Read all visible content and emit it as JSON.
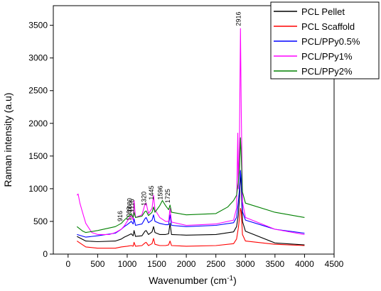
{
  "chart_data": {
    "type": "line",
    "title": "",
    "xlabel": "Wavenumber (cm",
    "xlabel_sup": "-1",
    "xlabel_close": ")",
    "ylabel": "Raman intensity (a.u)",
    "xlim": [
      -250,
      4500
    ],
    "ylim": [
      0,
      3800
    ],
    "xticks": [
      0,
      500,
      1000,
      1500,
      2000,
      2500,
      3000,
      3500,
      4000,
      4500
    ],
    "yticks": [
      0,
      500,
      1000,
      1500,
      2000,
      2500,
      3000,
      3500
    ],
    "legend_position": "top-right",
    "peak_labels": [
      {
        "text": "916",
        "x": 916,
        "y": 500
      },
      {
        "text": "1069",
        "x": 1069,
        "y": 510
      },
      {
        "text": "1080",
        "x": 1080,
        "y": 640
      },
      {
        "text": "1116",
        "x": 1116,
        "y": 640
      },
      {
        "text": "1320",
        "x": 1320,
        "y": 740
      },
      {
        "text": "1445",
        "x": 1445,
        "y": 830
      },
      {
        "text": "1596",
        "x": 1596,
        "y": 830
      },
      {
        "text": "1725",
        "x": 1725,
        "y": 780
      },
      {
        "text": "2916",
        "x": 2916,
        "y": 3490
      }
    ],
    "series": [
      {
        "name": "PCL Pellet",
        "color": "#000000",
        "points": [
          [
            150,
            270
          ],
          [
            300,
            200
          ],
          [
            500,
            190
          ],
          [
            800,
            200
          ],
          [
            900,
            230
          ],
          [
            950,
            260
          ],
          [
            1000,
            280
          ],
          [
            1069,
            310
          ],
          [
            1100,
            280
          ],
          [
            1116,
            360
          ],
          [
            1140,
            270
          ],
          [
            1250,
            280
          ],
          [
            1300,
            350
          ],
          [
            1320,
            360
          ],
          [
            1360,
            300
          ],
          [
            1420,
            340
          ],
          [
            1445,
            420
          ],
          [
            1470,
            330
          ],
          [
            1550,
            300
          ],
          [
            1650,
            300
          ],
          [
            1700,
            310
          ],
          [
            1725,
            470
          ],
          [
            1750,
            300
          ],
          [
            2000,
            290
          ],
          [
            2500,
            300
          ],
          [
            2800,
            340
          ],
          [
            2850,
            420
          ],
          [
            2880,
            600
          ],
          [
            2900,
            850
          ],
          [
            2916,
            1250
          ],
          [
            2930,
            1050
          ],
          [
            2950,
            500
          ],
          [
            3000,
            350
          ],
          [
            3500,
            170
          ],
          [
            4000,
            140
          ]
        ]
      },
      {
        "name": "PCL Scaffold",
        "color": "#ff0000",
        "points": [
          [
            150,
            200
          ],
          [
            300,
            110
          ],
          [
            500,
            90
          ],
          [
            800,
            90
          ],
          [
            900,
            110
          ],
          [
            1000,
            120
          ],
          [
            1069,
            130
          ],
          [
            1100,
            120
          ],
          [
            1116,
            180
          ],
          [
            1140,
            120
          ],
          [
            1250,
            130
          ],
          [
            1300,
            170
          ],
          [
            1320,
            180
          ],
          [
            1360,
            130
          ],
          [
            1420,
            160
          ],
          [
            1445,
            240
          ],
          [
            1470,
            150
          ],
          [
            1550,
            130
          ],
          [
            1650,
            130
          ],
          [
            1700,
            140
          ],
          [
            1725,
            200
          ],
          [
            1750,
            130
          ],
          [
            2000,
            120
          ],
          [
            2500,
            130
          ],
          [
            2800,
            160
          ],
          [
            2850,
            230
          ],
          [
            2880,
            400
          ],
          [
            2900,
            550
          ],
          [
            2916,
            700
          ],
          [
            2930,
            650
          ],
          [
            2950,
            300
          ],
          [
            3000,
            200
          ],
          [
            3500,
            150
          ],
          [
            4000,
            130
          ]
        ]
      },
      {
        "name": "PCL/PPy0.5%",
        "color": "#0000ff",
        "points": [
          [
            150,
            300
          ],
          [
            300,
            260
          ],
          [
            500,
            280
          ],
          [
            800,
            320
          ],
          [
            900,
            380
          ],
          [
            950,
            420
          ],
          [
            1000,
            450
          ],
          [
            1069,
            500
          ],
          [
            1100,
            460
          ],
          [
            1116,
            540
          ],
          [
            1140,
            440
          ],
          [
            1250,
            460
          ],
          [
            1300,
            540
          ],
          [
            1320,
            560
          ],
          [
            1360,
            480
          ],
          [
            1420,
            520
          ],
          [
            1445,
            600
          ],
          [
            1470,
            500
          ],
          [
            1550,
            470
          ],
          [
            1650,
            450
          ],
          [
            1700,
            450
          ],
          [
            1725,
            600
          ],
          [
            1750,
            440
          ],
          [
            2000,
            420
          ],
          [
            2500,
            440
          ],
          [
            2800,
            480
          ],
          [
            2850,
            560
          ],
          [
            2880,
            800
          ],
          [
            2900,
            1000
          ],
          [
            2916,
            1280
          ],
          [
            2930,
            1150
          ],
          [
            2950,
            650
          ],
          [
            3000,
            520
          ],
          [
            3500,
            380
          ],
          [
            4000,
            320
          ]
        ]
      },
      {
        "name": "PCL/PPy1%",
        "color": "#ff00ff",
        "points": [
          [
            150,
            900
          ],
          [
            170,
            920
          ],
          [
            200,
            780
          ],
          [
            250,
            620
          ],
          [
            300,
            470
          ],
          [
            400,
            330
          ],
          [
            500,
            300
          ],
          [
            700,
            300
          ],
          [
            800,
            330
          ],
          [
            900,
            380
          ],
          [
            950,
            430
          ],
          [
            1000,
            500
          ],
          [
            1069,
            590
          ],
          [
            1100,
            520
          ],
          [
            1116,
            820
          ],
          [
            1140,
            560
          ],
          [
            1250,
            600
          ],
          [
            1300,
            760
          ],
          [
            1320,
            780
          ],
          [
            1360,
            620
          ],
          [
            1420,
            700
          ],
          [
            1445,
            900
          ],
          [
            1470,
            680
          ],
          [
            1550,
            560
          ],
          [
            1650,
            500
          ],
          [
            1700,
            500
          ],
          [
            1725,
            700
          ],
          [
            1750,
            490
          ],
          [
            2000,
            440
          ],
          [
            2500,
            460
          ],
          [
            2800,
            520
          ],
          [
            2850,
            700
          ],
          [
            2870,
            1850
          ],
          [
            2880,
            1000
          ],
          [
            2900,
            1800
          ],
          [
            2916,
            3450
          ],
          [
            2930,
            2200
          ],
          [
            2950,
            800
          ],
          [
            3000,
            560
          ],
          [
            3500,
            380
          ],
          [
            4000,
            300
          ]
        ]
      },
      {
        "name": "PCL/PPy2%",
        "color": "#008000",
        "points": [
          [
            150,
            420
          ],
          [
            250,
            350
          ],
          [
            300,
            330
          ],
          [
            500,
            360
          ],
          [
            800,
            420
          ],
          [
            900,
            470
          ],
          [
            950,
            520
          ],
          [
            1000,
            560
          ],
          [
            1069,
            620
          ],
          [
            1100,
            560
          ],
          [
            1116,
            640
          ],
          [
            1140,
            560
          ],
          [
            1250,
            580
          ],
          [
            1300,
            650
          ],
          [
            1320,
            660
          ],
          [
            1360,
            590
          ],
          [
            1420,
            640
          ],
          [
            1445,
            720
          ],
          [
            1470,
            640
          ],
          [
            1550,
            740
          ],
          [
            1596,
            820
          ],
          [
            1650,
            740
          ],
          [
            1700,
            680
          ],
          [
            1725,
            750
          ],
          [
            1750,
            640
          ],
          [
            2000,
            600
          ],
          [
            2500,
            620
          ],
          [
            2700,
            720
          ],
          [
            2800,
            820
          ],
          [
            2850,
            900
          ],
          [
            2880,
            1100
          ],
          [
            2900,
            1300
          ],
          [
            2916,
            1780
          ],
          [
            2930,
            1500
          ],
          [
            2950,
            950
          ],
          [
            3000,
            780
          ],
          [
            3500,
            640
          ],
          [
            4000,
            560
          ]
        ]
      }
    ]
  }
}
